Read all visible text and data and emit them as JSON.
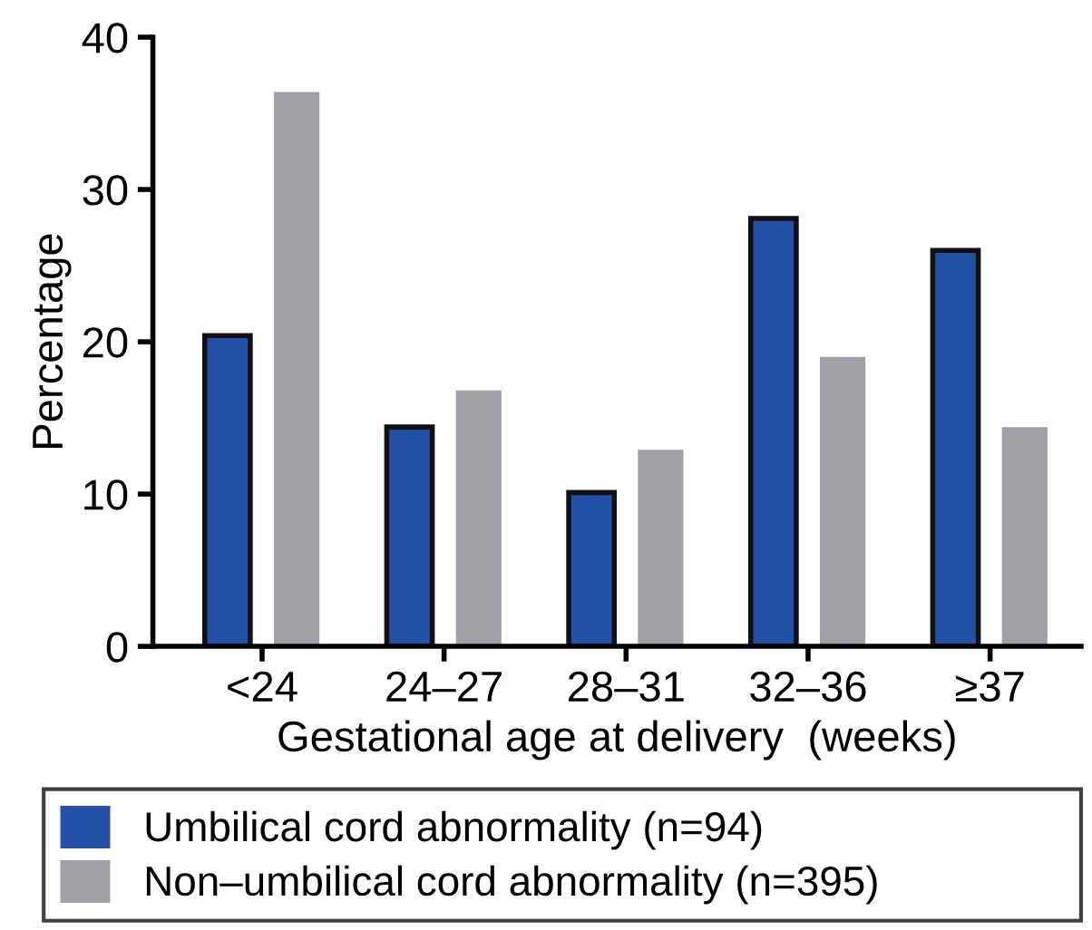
{
  "chart_data": {
    "type": "bar",
    "xlabel": "Gestational age at delivery  (weeks)",
    "ylabel": "Percentage",
    "categories": [
      "<24",
      "24–27",
      "28–31",
      "32–36",
      "≥37"
    ],
    "series": [
      {
        "name": "Umbilical cord abnormality (n=94)",
        "color": "#2550a8",
        "values": [
          20.4,
          14.4,
          10.1,
          28.1,
          26.0
        ]
      },
      {
        "name": "Non–umbilical cord abnormality (n=395)",
        "color": "#a0a1a6",
        "values": [
          36.4,
          16.8,
          12.9,
          19.0,
          14.4
        ]
      }
    ],
    "ylim": [
      0,
      40
    ],
    "yticks": [
      0,
      10,
      20,
      30,
      40
    ],
    "grid": false,
    "legend": "bottom"
  }
}
